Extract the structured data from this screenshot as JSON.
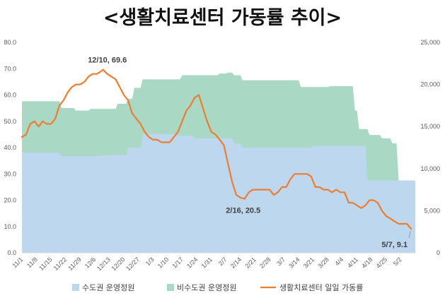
{
  "chart_data": {
    "type": "area",
    "title": "<생활치료센터 가동률 추이>",
    "x_tick_labels": [
      "11/1",
      "11/8",
      "11/15",
      "11/22",
      "11/29",
      "12/6",
      "12/13",
      "12/20",
      "12/27",
      "1/3",
      "1/10",
      "1/17",
      "1/24",
      "1/31",
      "2/7",
      "2/14",
      "2/21",
      "2/28",
      "3/7",
      "3/14",
      "3/21",
      "3/28",
      "4/4",
      "4/11",
      "4/18",
      "4/25",
      "5/2"
    ],
    "x_start": "2020-11-01",
    "x_end": "2021-05-09",
    "y_left": {
      "min": 0,
      "max": 80,
      "step": 10,
      "unit": "%"
    },
    "y_right": {
      "min": 0,
      "max": 25000,
      "step": 5000
    },
    "grid": false,
    "legend_position": "bottom",
    "series": [
      {
        "name": "수도권 운영정원",
        "kind": "area",
        "axis": "right",
        "color": "#BDD7EE",
        "x": [
          "2020-11-01",
          "2020-11-19",
          "2020-11-20",
          "2020-12-09",
          "2020-12-10",
          "2020-12-21",
          "2020-12-22",
          "2020-12-28",
          "2020-12-29",
          "2021-01-14",
          "2021-01-15",
          "2021-01-22",
          "2021-01-23",
          "2021-02-10",
          "2021-02-11",
          "2021-02-14",
          "2021-02-15",
          "2021-03-20",
          "2021-03-21",
          "2021-04-15",
          "2021-04-16",
          "2021-05-09"
        ],
        "values": [
          11900,
          11900,
          11500,
          11500,
          11600,
          11600,
          12500,
          12500,
          14100,
          14100,
          13900,
          13900,
          13600,
          13600,
          13000,
          13000,
          12500,
          12500,
          12700,
          12700,
          8600,
          8600
        ]
      },
      {
        "name": "비수도권 운영정원",
        "kind": "area",
        "axis": "right",
        "color": "#A9D8C4",
        "x": [
          "2020-11-01",
          "2020-11-19",
          "2020-11-20",
          "2020-11-26",
          "2020-11-27",
          "2020-12-03",
          "2020-12-04",
          "2020-12-09",
          "2020-12-10",
          "2020-12-16",
          "2020-12-17",
          "2020-12-21",
          "2020-12-22",
          "2020-12-24",
          "2020-12-25",
          "2020-12-28",
          "2020-12-29",
          "2021-01-16",
          "2021-01-17",
          "2021-02-03",
          "2021-02-04",
          "2021-02-07",
          "2021-02-08",
          "2021-02-10",
          "2021-02-11",
          "2021-02-14",
          "2021-02-15",
          "2021-03-14",
          "2021-03-15",
          "2021-03-28",
          "2021-03-29",
          "2021-04-09",
          "2021-04-10",
          "2021-04-11",
          "2021-04-12",
          "2021-04-16",
          "2021-04-17",
          "2021-04-22",
          "2021-04-23",
          "2021-04-27",
          "2021-04-28",
          "2021-04-30",
          "2021-05-01",
          "2021-05-03",
          "2021-05-04",
          "2021-05-09"
        ],
        "values": [
          18000,
          18000,
          17200,
          17200,
          16900,
          16900,
          17100,
          17100,
          17100,
          17100,
          17700,
          17700,
          18300,
          18300,
          19600,
          19600,
          20600,
          20600,
          21100,
          21100,
          21300,
          21300,
          21400,
          21400,
          21100,
          21100,
          20500,
          20500,
          19700,
          19700,
          19800,
          19800,
          16900,
          16900,
          14700,
          14700,
          14000,
          14000,
          13600,
          13600,
          13000,
          13000,
          8600,
          8600,
          6300,
          6300
        ]
      },
      {
        "name": "생활치료센터 일일 가동률",
        "kind": "line",
        "axis": "left",
        "color": "#ED7D31",
        "x": [
          "2020-11-01",
          "2020-11-03",
          "2020-11-05",
          "2020-11-07",
          "2020-11-09",
          "2020-11-11",
          "2020-11-13",
          "2020-11-15",
          "2020-11-17",
          "2020-11-19",
          "2020-11-21",
          "2020-11-23",
          "2020-11-25",
          "2020-11-27",
          "2020-11-29",
          "2020-12-01",
          "2020-12-03",
          "2020-12-05",
          "2020-12-07",
          "2020-12-09",
          "2020-12-10",
          "2020-12-12",
          "2020-12-14",
          "2020-12-16",
          "2020-12-18",
          "2020-12-20",
          "2020-12-22",
          "2020-12-24",
          "2020-12-26",
          "2020-12-28",
          "2020-12-30",
          "2021-01-01",
          "2021-01-03",
          "2021-01-05",
          "2021-01-07",
          "2021-01-09",
          "2021-01-11",
          "2021-01-13",
          "2021-01-15",
          "2021-01-17",
          "2021-01-19",
          "2021-01-21",
          "2021-01-23",
          "2021-01-25",
          "2021-01-27",
          "2021-01-29",
          "2021-01-31",
          "2021-02-02",
          "2021-02-04",
          "2021-02-06",
          "2021-02-08",
          "2021-02-10",
          "2021-02-12",
          "2021-02-14",
          "2021-02-16",
          "2021-02-18",
          "2021-02-20",
          "2021-02-22",
          "2021-02-24",
          "2021-02-26",
          "2021-02-28",
          "2021-03-02",
          "2021-03-04",
          "2021-03-06",
          "2021-03-08",
          "2021-03-10",
          "2021-03-12",
          "2021-03-14",
          "2021-03-16",
          "2021-03-18",
          "2021-03-20",
          "2021-03-22",
          "2021-03-24",
          "2021-03-26",
          "2021-03-28",
          "2021-03-30",
          "2021-04-01",
          "2021-04-03",
          "2021-04-05",
          "2021-04-07",
          "2021-04-09",
          "2021-04-11",
          "2021-04-13",
          "2021-04-15",
          "2021-04-17",
          "2021-04-19",
          "2021-04-21",
          "2021-04-23",
          "2021-04-25",
          "2021-04-27",
          "2021-04-29",
          "2021-05-01",
          "2021-05-03",
          "2021-05-05",
          "2021-05-07"
        ],
        "values": [
          44,
          45,
          49,
          50,
          48,
          50,
          49,
          49,
          51,
          56,
          58,
          61,
          63,
          64,
          64,
          65,
          67,
          68,
          68,
          69,
          69.6,
          68,
          67,
          66,
          63,
          60,
          58,
          53,
          51,
          49,
          46,
          44,
          43,
          43,
          42,
          42,
          42,
          44,
          46,
          50,
          54,
          56,
          59,
          60,
          55,
          50,
          46,
          45,
          43,
          41,
          34,
          27,
          22,
          21,
          20.5,
          23,
          24,
          24,
          24,
          24,
          24,
          22,
          23,
          25,
          25,
          28,
          30,
          30,
          30,
          30,
          29,
          25,
          25,
          24,
          24,
          23,
          24,
          23,
          23,
          19,
          19,
          18,
          17,
          18,
          20,
          20,
          19,
          16,
          14,
          13,
          12,
          11,
          11,
          11,
          9.1
        ]
      }
    ],
    "annotations": [
      {
        "text": "12/10, 69.6"
      },
      {
        "text": "2/16, 20.5"
      },
      {
        "text": "5/7, 9.1"
      }
    ]
  }
}
